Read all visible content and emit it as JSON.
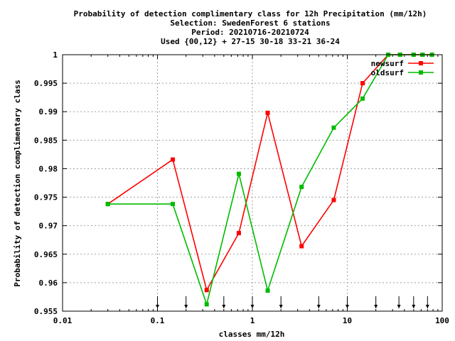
{
  "chart_data": {
    "type": "line",
    "title_lines": [
      "Probability of detection complimentary class  for 12h Precipitation (mm/12h)",
      "Selection: SwedenForest      6 stations",
      "Period: 20210716-20210724",
      "Used {00,12} + 27-15 30-18 33-21 36-24"
    ],
    "xlabel": "classes mm/12h",
    "ylabel": "Probability of detection complimentary class",
    "x_scale": "log",
    "xlim": [
      0.01,
      100
    ],
    "ylim": [
      0.955,
      1.0
    ],
    "x_ticks": [
      0.01,
      0.1,
      1,
      10,
      100
    ],
    "x_tick_labels": [
      "0.01",
      "0.1",
      "1",
      "10",
      "100"
    ],
    "y_ticks": [
      0.955,
      0.96,
      0.965,
      0.97,
      0.975,
      0.98,
      0.985,
      0.99,
      0.995,
      1.0
    ],
    "y_tick_labels": [
      "0.955",
      "0.96",
      "0.965",
      "0.97",
      "0.975",
      "0.98",
      "0.985",
      "0.99",
      "0.995",
      "1"
    ],
    "grid": true,
    "legend_position": "top-right",
    "class_limit_markers": [
      0.1,
      0.2,
      0.5,
      1,
      2,
      5,
      10,
      20,
      35,
      50,
      70
    ],
    "series": [
      {
        "name": "newsurf",
        "color": "#ff0000",
        "x": [
          0.03,
          0.145,
          0.33,
          0.72,
          1.45,
          3.3,
          7.2,
          14.5,
          27,
          36,
          50,
          62,
          78
        ],
        "y": [
          0.9738,
          0.9816,
          0.9587,
          0.9687,
          0.9898,
          0.9664,
          0.9745,
          0.995,
          1.0,
          1.0,
          1.0,
          1.0,
          1.0
        ]
      },
      {
        "name": "oldsurf",
        "color": "#00bb00",
        "x": [
          0.03,
          0.145,
          0.33,
          0.72,
          1.45,
          3.3,
          7.2,
          14.5,
          27,
          36,
          50,
          62,
          78
        ],
        "y": [
          0.9738,
          0.9738,
          0.9562,
          0.9791,
          0.9586,
          0.9768,
          0.9872,
          0.9923,
          1.0,
          1.0,
          1.0,
          1.0,
          1.0
        ]
      }
    ]
  }
}
